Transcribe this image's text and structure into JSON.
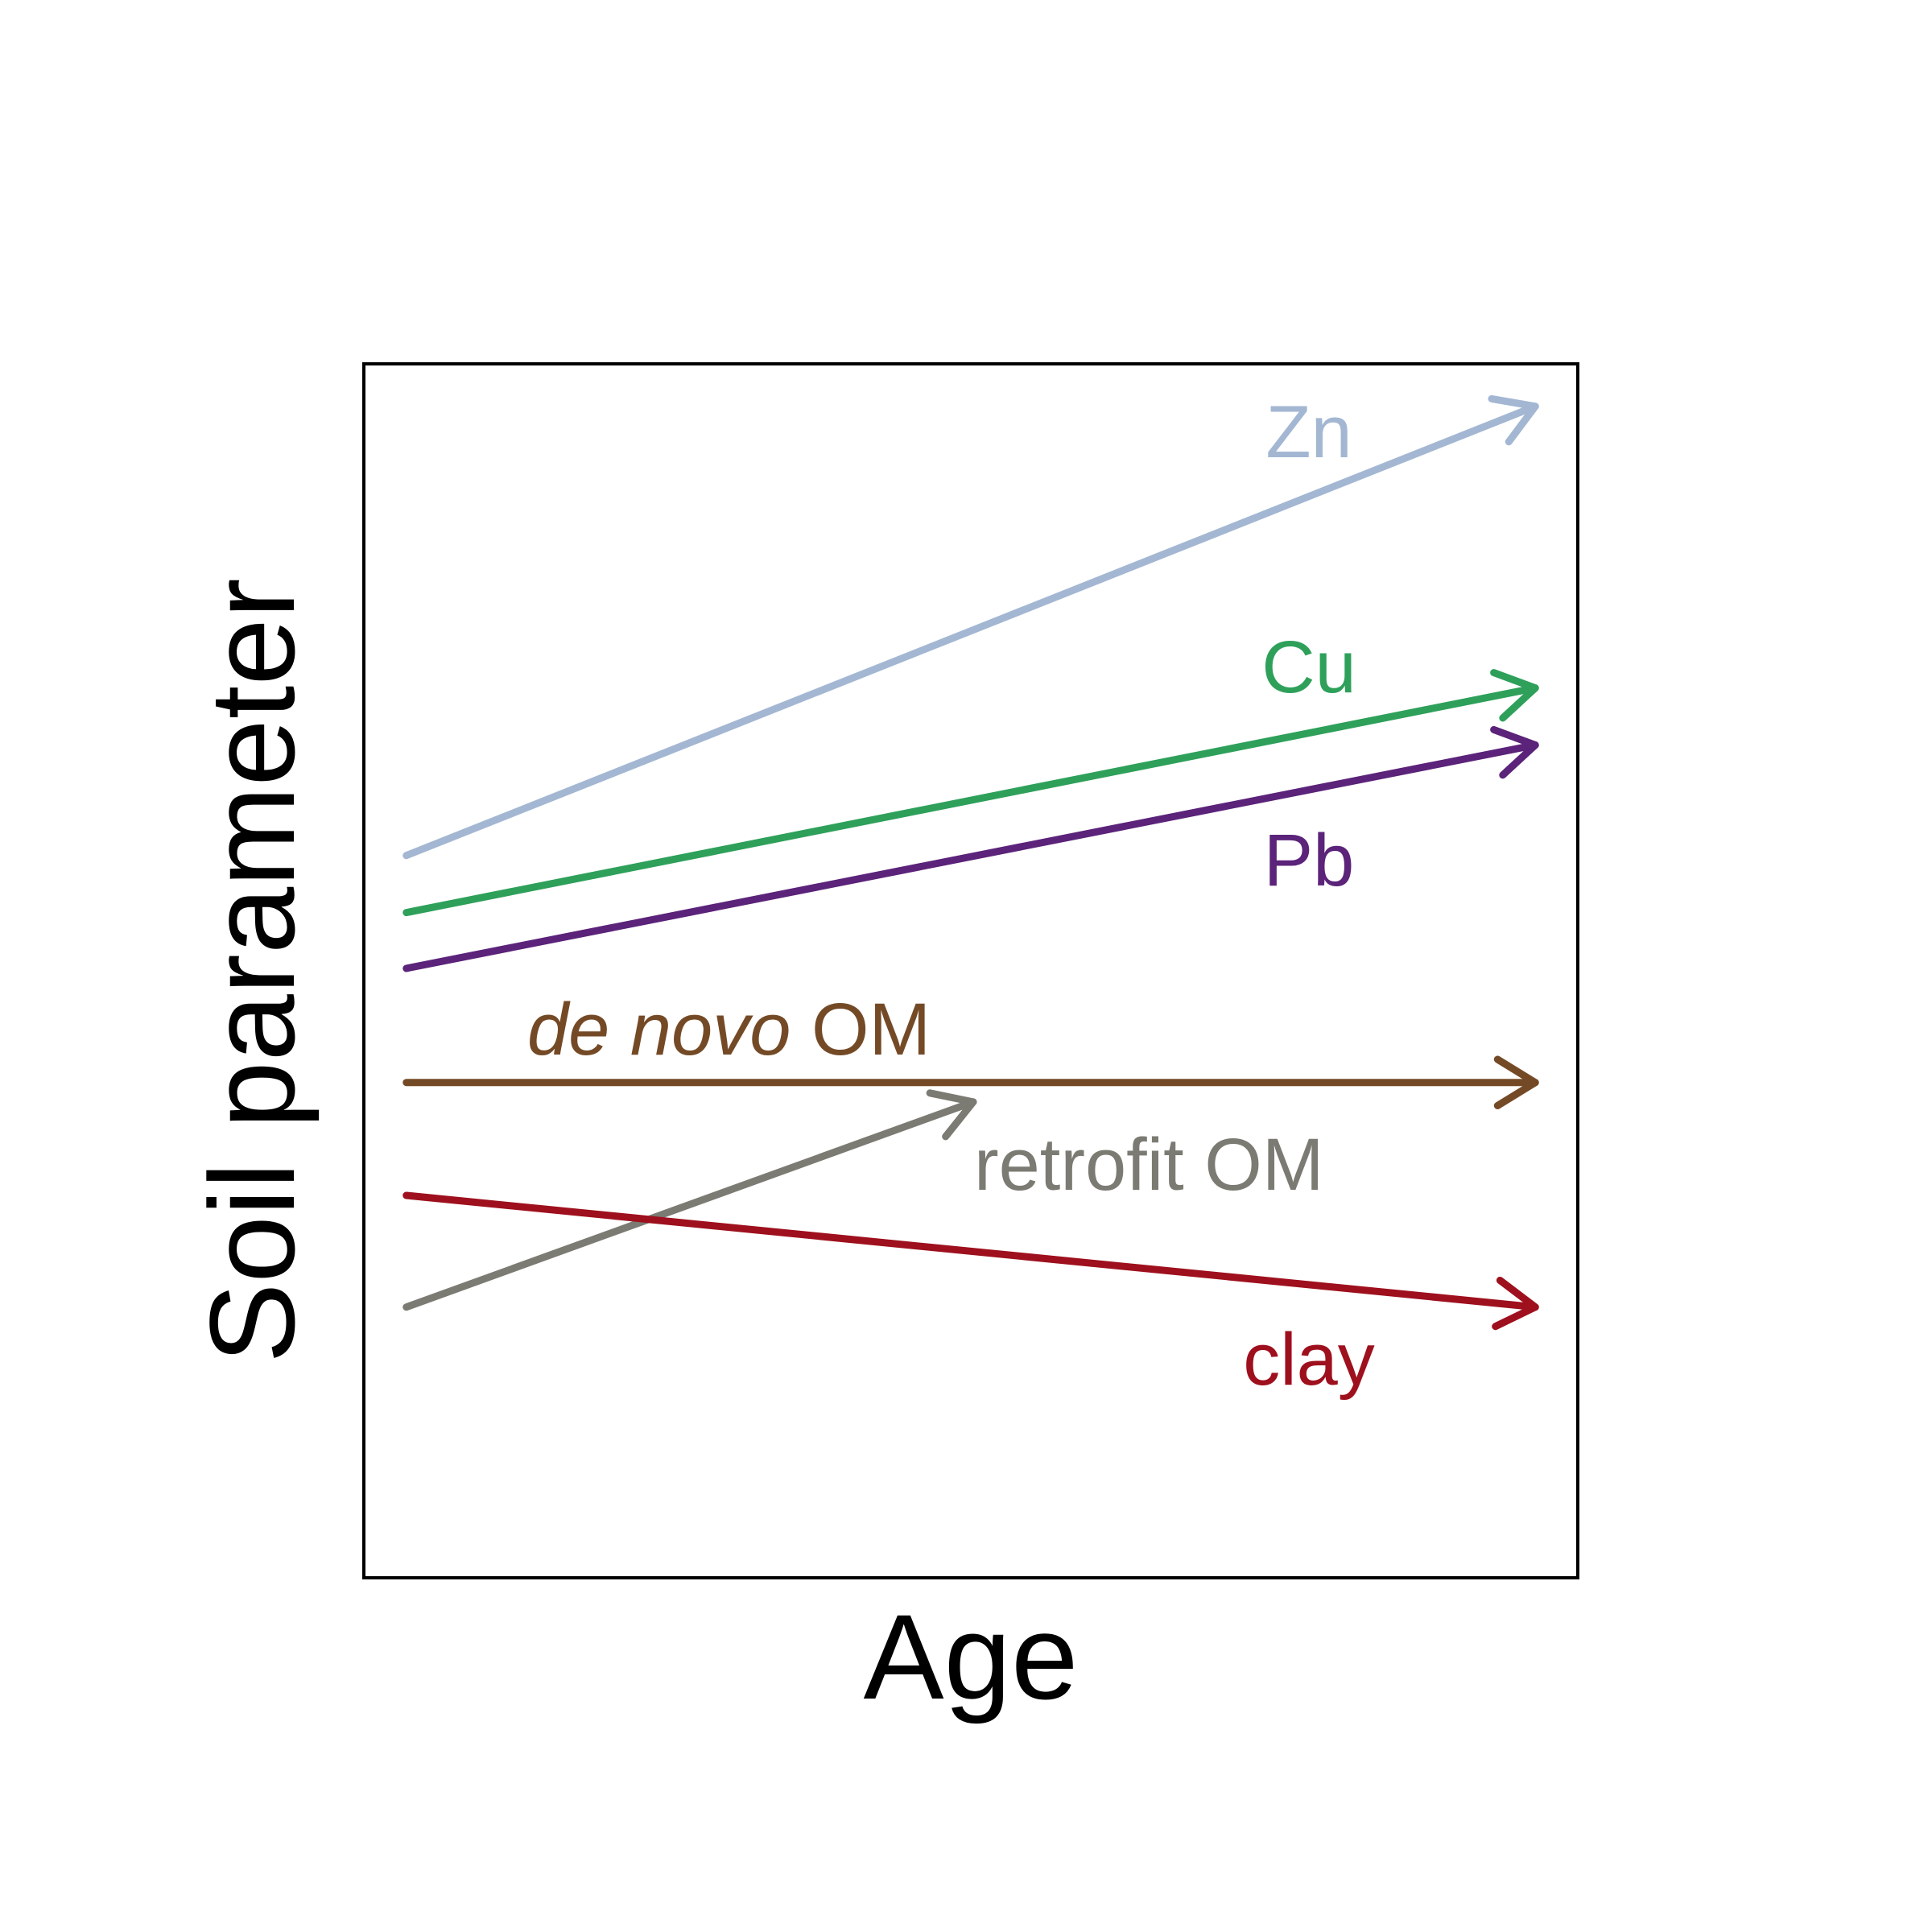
{
  "chart_data": {
    "type": "line",
    "title": "",
    "xlabel": "Age",
    "ylabel": "Soil parameter",
    "xlim": [
      0,
      1
    ],
    "ylim": [
      0,
      1
    ],
    "grid": false,
    "legend": "none",
    "ticks": "none",
    "series": [
      {
        "name": "Zn",
        "label_prefix": "",
        "label_suffix": "Zn",
        "color": "#a3b7d3",
        "x": [
          0.035,
          0.965
        ],
        "y": [
          0.595,
          0.965
        ]
      },
      {
        "name": "Cu",
        "label_prefix": "",
        "label_suffix": "Cu",
        "color": "#2ea05a",
        "x": [
          0.035,
          0.965
        ],
        "y": [
          0.548,
          0.733
        ]
      },
      {
        "name": "Pb",
        "label_prefix": "",
        "label_suffix": "Pb",
        "color": "#5b2379",
        "x": [
          0.035,
          0.965
        ],
        "y": [
          0.502,
          0.686
        ]
      },
      {
        "name": "de novo OM",
        "label_prefix": "de novo",
        "label_suffix": "OM",
        "color": "#744a26",
        "x": [
          0.035,
          0.965
        ],
        "y": [
          0.408,
          0.408
        ]
      },
      {
        "name": "retrofit OM",
        "label_prefix": "",
        "label_suffix": "retrofit OM",
        "color": "#7b7b73",
        "x": [
          0.035,
          0.502
        ],
        "y": [
          0.223,
          0.392
        ]
      },
      {
        "name": "clay",
        "label_prefix": "",
        "label_suffix": "clay",
        "color": "#9e101d",
        "x": [
          0.035,
          0.965
        ],
        "y": [
          0.315,
          0.223
        ]
      }
    ]
  }
}
